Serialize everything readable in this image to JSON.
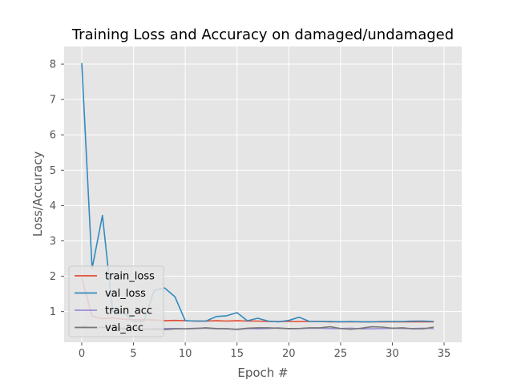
{
  "chart_data": {
    "type": "line",
    "title": "Training Loss and Accuracy on damaged/undamaged",
    "xlabel": "Epoch #",
    "ylabel": "Loss/Accuracy",
    "xlim": [
      -1.7,
      36.7
    ],
    "ylim": [
      0.13,
      8.5
    ],
    "xticks": [
      0,
      5,
      10,
      15,
      20,
      25,
      30,
      35
    ],
    "yticks": [
      1,
      2,
      3,
      4,
      5,
      6,
      7,
      8
    ],
    "grid": true,
    "background": "#e5e5e5",
    "legend_position": "lower-left",
    "x": [
      0,
      1,
      2,
      3,
      4,
      5,
      6,
      7,
      8,
      9,
      10,
      11,
      12,
      13,
      14,
      15,
      16,
      17,
      18,
      19,
      20,
      21,
      22,
      23,
      24,
      25,
      26,
      27,
      28,
      29,
      30,
      31,
      32,
      33,
      34
    ],
    "series": [
      {
        "name": "train_loss",
        "color": "#e24a33",
        "values": [
          1.95,
          0.87,
          0.8,
          0.82,
          0.78,
          0.77,
          0.77,
          0.76,
          0.74,
          0.75,
          0.74,
          0.73,
          0.73,
          0.74,
          0.73,
          0.74,
          0.73,
          0.73,
          0.72,
          0.72,
          0.72,
          0.72,
          0.72,
          0.72,
          0.71,
          0.71,
          0.71,
          0.71,
          0.71,
          0.71,
          0.71,
          0.71,
          0.71,
          0.71,
          0.71
        ]
      },
      {
        "name": "val_loss",
        "color": "#348abd",
        "values": [
          8.03,
          2.22,
          3.72,
          1.0,
          0.98,
          0.72,
          0.72,
          1.6,
          1.67,
          1.42,
          0.74,
          0.73,
          0.73,
          0.86,
          0.88,
          0.97,
          0.74,
          0.81,
          0.73,
          0.71,
          0.75,
          0.84,
          0.72,
          0.72,
          0.72,
          0.71,
          0.72,
          0.71,
          0.71,
          0.72,
          0.72,
          0.72,
          0.73,
          0.73,
          0.72
        ]
      },
      {
        "name": "train_acc",
        "color": "#988ed5",
        "values": [
          0.6,
          0.55,
          0.56,
          0.52,
          0.5,
          0.52,
          0.51,
          0.52,
          0.52,
          0.52,
          0.51,
          0.53,
          0.53,
          0.51,
          0.52,
          0.49,
          0.52,
          0.51,
          0.52,
          0.54,
          0.51,
          0.52,
          0.53,
          0.53,
          0.52,
          0.52,
          0.53,
          0.51,
          0.51,
          0.52,
          0.53,
          0.52,
          0.52,
          0.53,
          0.52
        ]
      },
      {
        "name": "val_acc",
        "color": "#777777",
        "values": [
          0.55,
          0.55,
          0.55,
          0.55,
          0.53,
          0.5,
          0.5,
          0.49,
          0.49,
          0.51,
          0.51,
          0.52,
          0.54,
          0.52,
          0.51,
          0.5,
          0.53,
          0.54,
          0.54,
          0.53,
          0.52,
          0.52,
          0.54,
          0.54,
          0.57,
          0.52,
          0.5,
          0.53,
          0.57,
          0.56,
          0.53,
          0.54,
          0.51,
          0.51,
          0.56
        ]
      }
    ]
  }
}
